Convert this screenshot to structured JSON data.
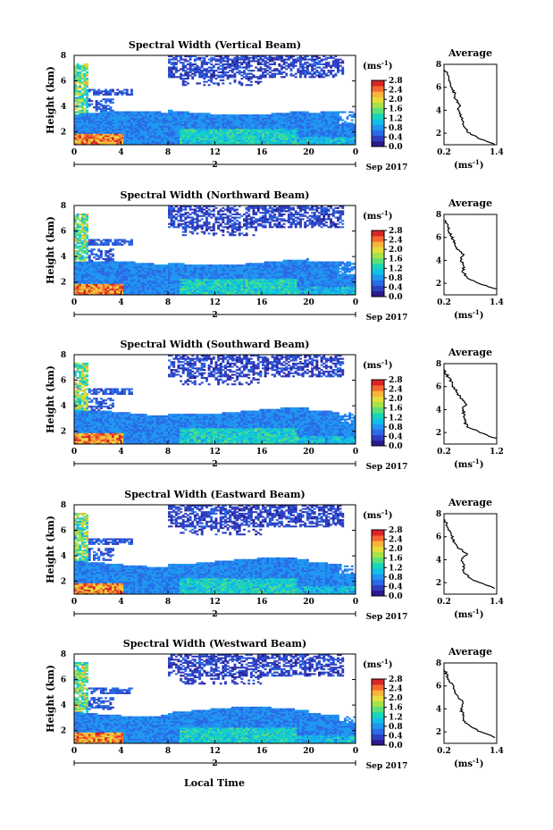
{
  "figure": {
    "bottom_xlabel": "Local Time",
    "date_label": "Sep 2017",
    "day_label": "2",
    "colorbar_unit": "(ms",
    "colorbar_unit_sup": "-1",
    "average_title": "Average",
    "average_unit": "(ms",
    "average_unit_sup": "-1",
    "ylabel": "Height (km)"
  },
  "colors": {
    "colormap": [
      "#2b1a8c",
      "#2f3fc0",
      "#2a6be8",
      "#1f97f0",
      "#12bfe6",
      "#18d6b8",
      "#5be07a",
      "#a6e24a",
      "#e6dc3a",
      "#f7b33a",
      "#f5692e",
      "#d92428"
    ],
    "axis": "#000000"
  },
  "chart_data": [
    {
      "type": "heatmap",
      "title": "Spectral Width (Vertical Beam)",
      "xlabel": "",
      "ylabel": "Height (km)",
      "x_ticks": [
        "0",
        "4",
        "8",
        "12",
        "16",
        "20",
        "0"
      ],
      "y_ticks": [
        "2",
        "4",
        "6",
        "8"
      ],
      "xlim": [
        0,
        24
      ],
      "ylim": [
        1,
        8
      ],
      "colorbar": {
        "ticks": [
          "0.0",
          "0.4",
          "0.8",
          "1.2",
          "1.6",
          "2.0",
          "2.4",
          "2.8"
        ],
        "range": [
          0,
          2.8
        ]
      },
      "average": {
        "title": "Average",
        "x_ticks": [
          "0.2",
          "1.4"
        ],
        "xlim": [
          0.2,
          1.4
        ],
        "y_ticks": [
          "2",
          "4",
          "6",
          "8"
        ],
        "heights": [
          1.0,
          1.5,
          2.0,
          2.5,
          3.0,
          3.5,
          4.0,
          4.5,
          5.0,
          5.5,
          6.0,
          6.5,
          7.0,
          7.5
        ],
        "values": [
          1.38,
          1.02,
          0.78,
          0.66,
          0.62,
          0.58,
          0.52,
          0.56,
          0.46,
          0.44,
          0.36,
          0.34,
          0.3,
          0.22
        ]
      }
    },
    {
      "type": "heatmap",
      "title": "Spectral Width (Northward Beam)",
      "xlabel": "",
      "ylabel": "Height (km)",
      "x_ticks": [
        "0",
        "4",
        "8",
        "12",
        "16",
        "20",
        "0"
      ],
      "y_ticks": [
        "2",
        "4",
        "6",
        "8"
      ],
      "xlim": [
        0,
        24
      ],
      "ylim": [
        1,
        8
      ],
      "colorbar": {
        "ticks": [
          "0.0",
          "0.4",
          "0.8",
          "1.2",
          "1.6",
          "2.0",
          "2.4",
          "2.8"
        ],
        "range": [
          0,
          2.8
        ]
      },
      "average": {
        "title": "Average",
        "x_ticks": [
          "0.2",
          "1.4"
        ],
        "xlim": [
          0.2,
          1.4
        ],
        "y_ticks": [
          "2",
          "4",
          "6",
          "8"
        ],
        "heights": [
          1.5,
          2.0,
          2.5,
          3.0,
          3.5,
          4.0,
          4.5,
          5.0,
          5.5,
          6.0,
          6.5,
          7.0,
          7.5
        ],
        "values": [
          1.4,
          0.96,
          0.74,
          0.62,
          0.66,
          0.58,
          0.64,
          0.5,
          0.44,
          0.38,
          0.32,
          0.28,
          0.22
        ]
      }
    },
    {
      "type": "heatmap",
      "title": "Spectral Width (Southward Beam)",
      "xlabel": "",
      "ylabel": "Height (km)",
      "x_ticks": [
        "0",
        "4",
        "8",
        "12",
        "16",
        "20",
        "0"
      ],
      "y_ticks": [
        "2",
        "4",
        "6",
        "8"
      ],
      "xlim": [
        0,
        24
      ],
      "ylim": [
        1,
        8
      ],
      "colorbar": {
        "ticks": [
          "0.0",
          "0.4",
          "0.8",
          "1.2",
          "1.6",
          "2.0",
          "2.4",
          "2.8"
        ],
        "range": [
          0,
          2.8
        ]
      },
      "average": {
        "title": "Average",
        "x_ticks": [
          "0.2",
          "1.2"
        ],
        "xlim": [
          0.2,
          1.2
        ],
        "y_ticks": [
          "2",
          "4",
          "6",
          "8"
        ],
        "heights": [
          1.5,
          2.0,
          2.5,
          3.0,
          3.5,
          4.0,
          4.5,
          5.0,
          5.5,
          6.0,
          6.5,
          7.0,
          7.5
        ],
        "values": [
          1.18,
          0.88,
          0.66,
          0.58,
          0.6,
          0.54,
          0.64,
          0.52,
          0.44,
          0.38,
          0.32,
          0.26,
          0.2
        ]
      }
    },
    {
      "type": "heatmap",
      "title": "Spectral Width (Eastward Beam)",
      "xlabel": "",
      "ylabel": "Height (km)",
      "x_ticks": [
        "0",
        "4",
        "8",
        "12",
        "16",
        "20",
        "0"
      ],
      "y_ticks": [
        "2",
        "4",
        "6",
        "8"
      ],
      "xlim": [
        0,
        24
      ],
      "ylim": [
        1,
        8
      ],
      "colorbar": {
        "ticks": [
          "0.0",
          "0.4",
          "0.8",
          "1.2",
          "1.6",
          "2.0",
          "2.4",
          "2.8"
        ],
        "range": [
          0,
          2.8
        ]
      },
      "average": {
        "title": "Average",
        "x_ticks": [
          "0.2",
          "1.4"
        ],
        "xlim": [
          0.2,
          1.4
        ],
        "y_ticks": [
          "2",
          "4",
          "6",
          "8"
        ],
        "heights": [
          1.5,
          2.0,
          2.5,
          3.0,
          3.5,
          4.0,
          4.5,
          5.0,
          5.5,
          6.0,
          6.5,
          7.0,
          7.5
        ],
        "values": [
          1.36,
          1.0,
          0.76,
          0.64,
          0.66,
          0.6,
          0.72,
          0.54,
          0.44,
          0.38,
          0.32,
          0.26,
          0.22
        ]
      }
    },
    {
      "type": "heatmap",
      "title": "Spectral Width (Westward Beam)",
      "xlabel": "Local Time",
      "ylabel": "Height (km)",
      "x_ticks": [
        "0",
        "4",
        "8",
        "12",
        "16",
        "20",
        "0"
      ],
      "y_ticks": [
        "2",
        "4",
        "6",
        "8"
      ],
      "xlim": [
        0,
        24
      ],
      "ylim": [
        1,
        8
      ],
      "colorbar": {
        "ticks": [
          "0.0",
          "0.4",
          "0.8",
          "1.2",
          "1.6",
          "2.0",
          "2.4",
          "2.8"
        ],
        "range": [
          0,
          2.8
        ]
      },
      "average": {
        "title": "Average",
        "x_ticks": [
          "0.2",
          "1.4"
        ],
        "xlim": [
          0.2,
          1.4
        ],
        "y_ticks": [
          "2",
          "4",
          "6",
          "8"
        ],
        "heights": [
          1.5,
          2.0,
          2.5,
          3.0,
          3.5,
          4.0,
          4.5,
          5.0,
          5.5,
          6.0,
          6.5,
          7.0,
          7.5
        ],
        "values": [
          1.38,
          1.02,
          0.8,
          0.62,
          0.64,
          0.58,
          0.66,
          0.52,
          0.46,
          0.4,
          0.32,
          0.26,
          0.2
        ]
      }
    }
  ]
}
